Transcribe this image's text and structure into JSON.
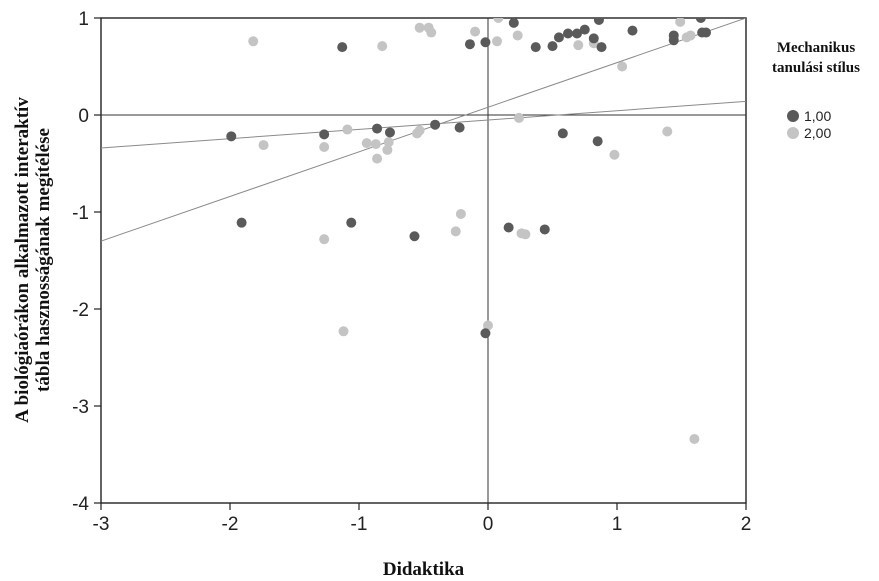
{
  "chart_data": {
    "type": "scatter",
    "title": "",
    "xlabel": "Didaktika",
    "ylabel_lines": [
      "A biológiaórákon alkalmazott  interaktív",
      "tábla hasznosságának megítélése"
    ],
    "xlim": [
      -3,
      2
    ],
    "ylim": [
      -4,
      1
    ],
    "x_ticks": [
      -3,
      -2,
      -1,
      0,
      1,
      2
    ],
    "y_ticks": [
      -4,
      -3,
      -2,
      -1,
      0,
      1
    ],
    "x_tick_labels": [
      "-3",
      "-2",
      "-1",
      "0",
      "1",
      "2"
    ],
    "y_tick_labels": [
      "-4",
      "-3",
      "-2",
      "-1",
      "0",
      "1"
    ],
    "grid": false,
    "legend": {
      "title_lines": [
        "Mechanikus",
        "tanulási stílus"
      ],
      "position": "right",
      "entries": [
        "1,00",
        "2,00"
      ]
    },
    "series": [
      {
        "name": "1,00",
        "color": "#5a5a5a",
        "points": [
          [
            -1.99,
            -0.22
          ],
          [
            -1.91,
            -1.11
          ],
          [
            -1.27,
            -0.2
          ],
          [
            -1.13,
            0.7
          ],
          [
            -1.06,
            -1.11
          ],
          [
            -0.86,
            -0.14
          ],
          [
            -0.76,
            -0.18
          ],
          [
            -0.57,
            -1.25
          ],
          [
            -0.41,
            -0.1
          ],
          [
            -0.22,
            -0.13
          ],
          [
            -0.14,
            0.73
          ],
          [
            -0.02,
            0.75
          ],
          [
            -0.02,
            -2.25
          ],
          [
            0.16,
            -1.16
          ],
          [
            0.2,
            0.95
          ],
          [
            0.37,
            0.7
          ],
          [
            0.44,
            -1.18
          ],
          [
            0.5,
            0.71
          ],
          [
            0.55,
            0.8
          ],
          [
            0.58,
            -0.19
          ],
          [
            0.62,
            0.84
          ],
          [
            0.69,
            0.84
          ],
          [
            0.75,
            0.88
          ],
          [
            0.82,
            0.79
          ],
          [
            0.85,
            -0.27
          ],
          [
            0.86,
            0.98
          ],
          [
            0.88,
            0.7
          ],
          [
            1.12,
            0.87
          ],
          [
            1.44,
            0.77
          ],
          [
            1.44,
            0.82
          ],
          [
            1.65,
            1.0
          ],
          [
            1.66,
            0.85
          ],
          [
            1.69,
            0.85
          ]
        ],
        "fit_line": [
          [
            -3,
            -1.3
          ],
          [
            2,
            1.0
          ]
        ]
      },
      {
        "name": "2,00",
        "color": "#c4c4c4",
        "points": [
          [
            -1.82,
            0.76
          ],
          [
            -1.74,
            -0.31
          ],
          [
            -1.27,
            -0.33
          ],
          [
            -1.27,
            -1.28
          ],
          [
            -1.12,
            -2.23
          ],
          [
            -1.09,
            -0.15
          ],
          [
            -0.94,
            -0.29
          ],
          [
            -0.87,
            -0.3
          ],
          [
            -0.86,
            -0.45
          ],
          [
            -0.82,
            0.71
          ],
          [
            -0.78,
            -0.36
          ],
          [
            -0.77,
            -0.28
          ],
          [
            -0.55,
            -0.19
          ],
          [
            -0.53,
            -0.16
          ],
          [
            -0.53,
            0.9
          ],
          [
            -0.46,
            0.9
          ],
          [
            -0.44,
            0.85
          ],
          [
            -0.25,
            -1.2
          ],
          [
            -0.21,
            -1.02
          ],
          [
            -0.1,
            0.86
          ],
          [
            0.0,
            -2.17
          ],
          [
            0.07,
            0.76
          ],
          [
            0.08,
            1.0
          ],
          [
            0.23,
            0.82
          ],
          [
            0.24,
            -0.03
          ],
          [
            0.26,
            -1.22
          ],
          [
            0.29,
            -1.23
          ],
          [
            0.7,
            0.72
          ],
          [
            0.82,
            0.74
          ],
          [
            0.98,
            -0.41
          ],
          [
            1.04,
            0.5
          ],
          [
            1.39,
            -0.17
          ],
          [
            1.49,
            0.96
          ],
          [
            1.54,
            0.8
          ],
          [
            1.57,
            0.82
          ],
          [
            1.6,
            -3.34
          ]
        ],
        "fit_line": [
          [
            -3,
            -0.34
          ],
          [
            2,
            0.14
          ]
        ]
      }
    ]
  }
}
